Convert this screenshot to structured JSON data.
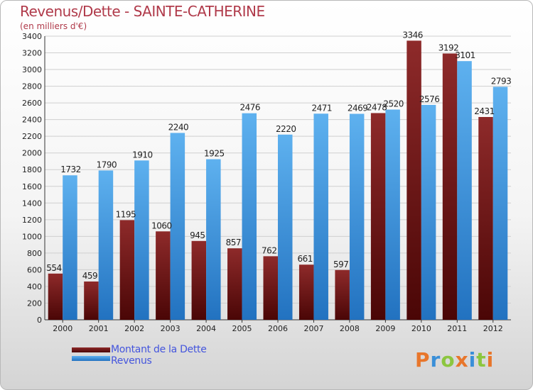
{
  "chart_data": {
    "type": "bar",
    "title": "Revenus/Dette - SAINTE-CATHERINE",
    "subtitle": "(en milliers d'€)",
    "categories": [
      "2000",
      "2001",
      "2002",
      "2003",
      "2004",
      "2005",
      "2006",
      "2007",
      "2008",
      "2009",
      "2010",
      "2011",
      "2012"
    ],
    "series": [
      {
        "name": "Montant de la Dette",
        "color": "#7a1a1a",
        "values": [
          554,
          459,
          1195,
          1060,
          945,
          857,
          762,
          661,
          597,
          2478,
          3346,
          3192,
          2431
        ]
      },
      {
        "name": "Revenus",
        "color": "#3a8fd8",
        "values": [
          1732,
          1790,
          1910,
          2240,
          1925,
          2476,
          2220,
          2471,
          2469,
          2520,
          2576,
          3101,
          2793
        ]
      }
    ],
    "ylim": [
      0,
      3400
    ],
    "yticks": [
      0,
      200,
      400,
      600,
      800,
      1000,
      1200,
      1400,
      1600,
      1800,
      2000,
      2200,
      2400,
      2600,
      2800,
      3000,
      3200,
      3400
    ],
    "grid": true,
    "legend_position": "bottom-left"
  },
  "logo": {
    "letters": [
      "P",
      "r",
      "o",
      "x",
      "i",
      "t",
      "i"
    ],
    "colors": [
      "#e8762b",
      "#3a8fd8",
      "#8cc63f",
      "#e8762b",
      "#3a8fd8",
      "#8cc63f",
      "#e8762b"
    ]
  }
}
